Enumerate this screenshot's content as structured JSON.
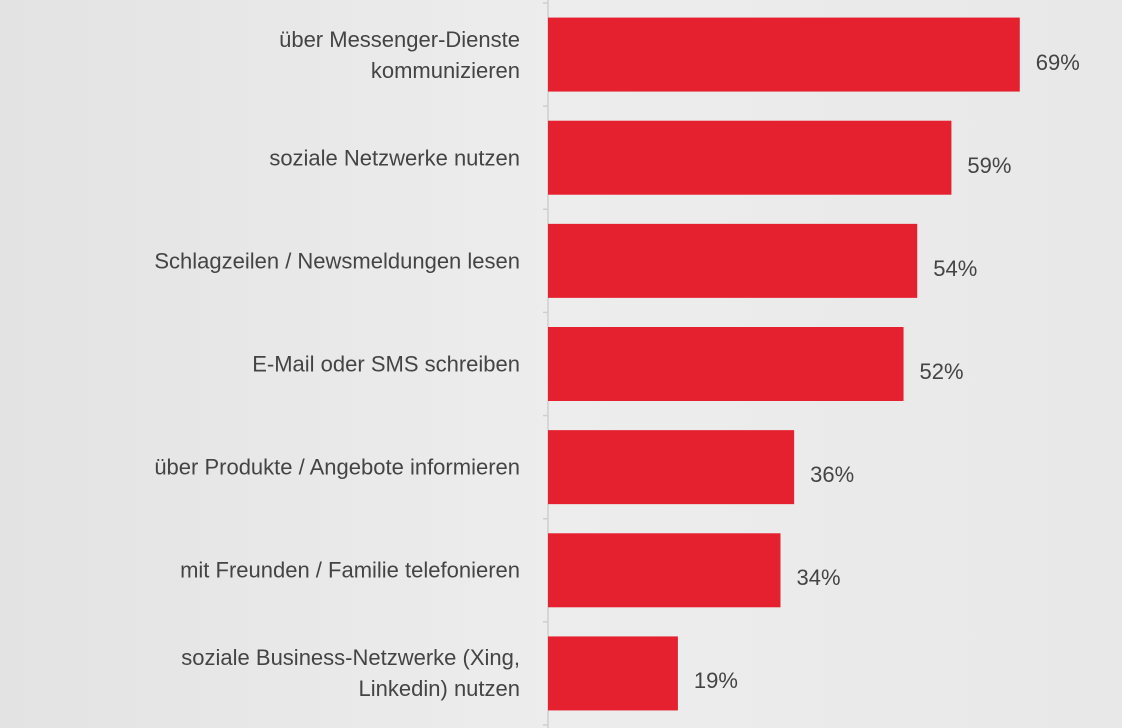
{
  "chart_data": {
    "type": "barh",
    "categories": [
      "über Messenger-Dienste\nkommunizieren",
      "soziale Netzwerke nutzen",
      "Schlagzeilen / Newsmeldungen lesen",
      "E-Mail oder SMS schreiben",
      "über Produkte / Angebote informieren",
      "mit Freunden / Familie telefonieren",
      "soziale Business-Netzwerke (Xing,\nLinkedin) nutzen"
    ],
    "values": [
      69,
      59,
      54,
      52,
      36,
      34,
      19
    ],
    "value_labels": [
      "69%",
      "59%",
      "54%",
      "52%",
      "36%",
      "34%",
      "19%"
    ],
    "color": "#e5202f",
    "xlim": [
      0,
      80
    ]
  }
}
